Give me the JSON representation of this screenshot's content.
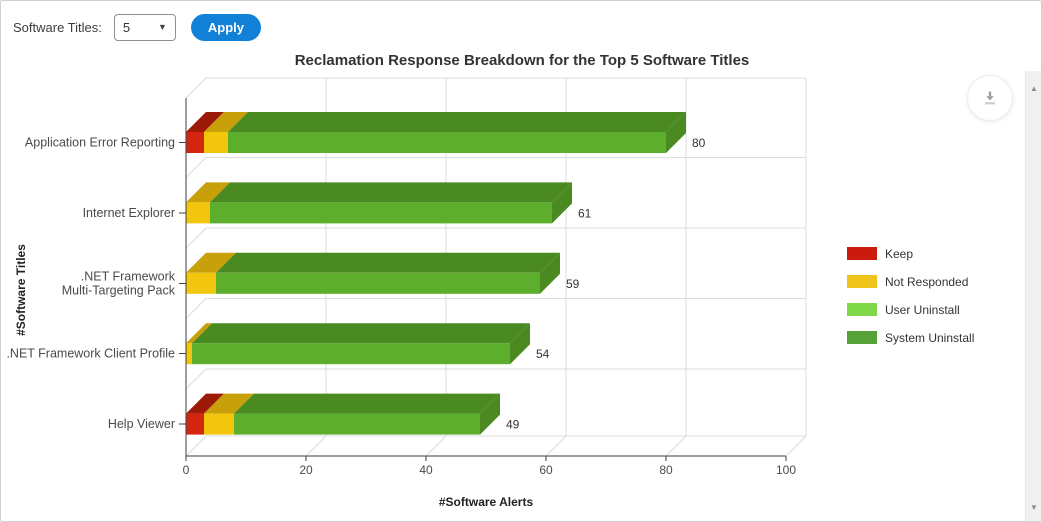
{
  "controls": {
    "software_titles_label": "Software Titles:",
    "titles_select_value": "5",
    "select_caret": "▼",
    "apply_button_label": "Apply"
  },
  "scrollbar": {
    "up_arrow": "▲",
    "down_arrow": "▼"
  },
  "colors": {
    "apply_button": "#1181d8",
    "grid_line": "#dcdcdc",
    "axis_line": "#3f3f3f",
    "tick_text": "#4a4a4a",
    "category_text": "#4a4a4a",
    "value_text": "#333333",
    "download_icon": "#9aa0a6"
  },
  "chart_data": {
    "type": "bar",
    "subtype": "horizontal-stacked-3d",
    "title": "Reclamation Response Breakdown for the Top 5 Software Titles",
    "xlabel": "#Software Alerts",
    "ylabel": "#Software Titles",
    "xlim": [
      0,
      100
    ],
    "xticks": [
      0,
      20,
      40,
      60,
      80,
      100
    ],
    "grid": true,
    "legend_position": "right",
    "categories": [
      "Application Error Reporting",
      "Internet Explorer",
      ".NET Framework Multi-Targeting Pack",
      ".NET Framework Client Profile",
      "Help Viewer"
    ],
    "category_label_lines": [
      [
        "Application Error Reporting"
      ],
      [
        "Internet Explorer"
      ],
      [
        ".NET Framework",
        "Multi-Targeting Pack"
      ],
      [
        ".NET Framework Client Profile"
      ],
      [
        "Help Viewer"
      ]
    ],
    "totals": [
      80,
      61,
      59,
      54,
      49
    ],
    "series": [
      {
        "name": "Keep",
        "values": [
          3,
          0,
          0,
          0,
          3
        ],
        "color": "#cb1a0e",
        "front": "#d3250f",
        "top": "#9e1a08"
      },
      {
        "name": "Not Responded",
        "values": [
          4,
          4,
          5,
          1,
          5
        ],
        "color": "#eec31a",
        "front": "#f2c60d",
        "top": "#c7a00a"
      },
      {
        "name": "User Uninstall",
        "values": [
          0,
          0,
          0,
          0,
          0
        ],
        "color": "#7ed848",
        "front": "#86da4b",
        "top": "#6ab32f"
      },
      {
        "name": "System Uninstall",
        "values": [
          73,
          57,
          54,
          53,
          41
        ],
        "color": "#58a23a",
        "front": "#5cae2c",
        "top": "#4a8a20"
      }
    ]
  }
}
